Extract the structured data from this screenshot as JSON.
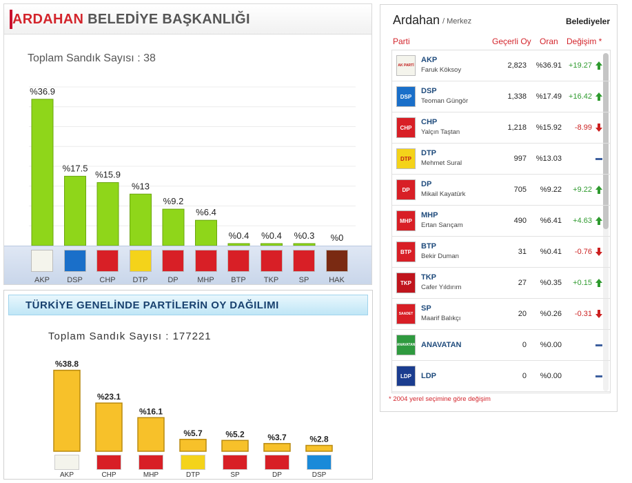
{
  "local": {
    "title_red": "ARDAHAN",
    "title_gray": "BELEDİYE BAŞKANLIĞI",
    "sandik_text": "Toplam Sandık Sayısı : 38"
  },
  "national": {
    "title": "TÜRKİYE GENELİNDE PARTİLERİN OY DAĞILIMI",
    "sandik_text": "Toplam Sandık Sayısı : 177221"
  },
  "chart_data": [
    {
      "type": "bar",
      "categories": [
        "AKP",
        "DSP",
        "CHP",
        "DTP",
        "DP",
        "MHP",
        "BTP",
        "TKP",
        "SP",
        "HAK"
      ],
      "values": [
        36.9,
        17.5,
        15.9,
        13,
        9.2,
        6.4,
        0.4,
        0.4,
        0.3,
        0
      ],
      "labels": [
        "%36.9",
        "%17.5",
        "%15.9",
        "%13",
        "%9.2",
        "%6.4",
        "%0.4",
        "%0.4",
        "%0.3",
        "%0"
      ],
      "logo_colors": [
        "#f4f4ec",
        "#1a6fc9",
        "#d81f26",
        "#f4d31a",
        "#d81f26",
        "#d81f26",
        "#d81f26",
        "#d81f26",
        "#d81f26",
        "#7a2a12"
      ],
      "title": "ARDAHAN BELEDİYE BAŞKANLIĞI",
      "ylim": [
        0,
        40
      ],
      "grid": true,
      "bar_color": "#8fd61a"
    },
    {
      "type": "bar",
      "categories": [
        "AKP",
        "CHP",
        "MHP",
        "DTP",
        "SP",
        "DP",
        "DSP"
      ],
      "values": [
        38.8,
        23.1,
        16.1,
        5.7,
        5.2,
        3.7,
        2.8
      ],
      "labels": [
        "%38.8",
        "%23.1",
        "%16.1",
        "%5.7",
        "%5.2",
        "%3.7",
        "%2.8"
      ],
      "logo_colors": [
        "#f4f4ec",
        "#d81f26",
        "#d81f26",
        "#f4d31a",
        "#d81f26",
        "#d81f26",
        "#1a8ad9"
      ],
      "title": "TÜRKİYE GENELİNDE PARTİLERİN OY DAĞILIMI",
      "ylim": [
        0,
        40
      ],
      "grid": false,
      "bar_color": "#f7c12a"
    },
    {
      "type": "table",
      "columns": [
        "Parti",
        "Geçerli Oy",
        "Oran",
        "Değişim *"
      ],
      "rows": [
        {
          "party": "AKP",
          "candidate": "Faruk Köksoy",
          "votes": "2,823",
          "pct": "%36.91",
          "change": "+19.27",
          "dir": "up",
          "color": "#f4f4ec",
          "abbr": "AK PARTİ"
        },
        {
          "party": "DSP",
          "candidate": "Teoman Güngör",
          "votes": "1,338",
          "pct": "%17.49",
          "change": "+16.42",
          "dir": "up",
          "color": "#1a6fc9",
          "abbr": "DSP"
        },
        {
          "party": "CHP",
          "candidate": "Yalçın Taştan",
          "votes": "1,218",
          "pct": "%15.92",
          "change": "-8.99",
          "dir": "down",
          "color": "#d81f26",
          "abbr": "CHP"
        },
        {
          "party": "DTP",
          "candidate": "Mehmet Sural",
          "votes": "997",
          "pct": "%13.03",
          "change": "",
          "dir": "none",
          "color": "#f4d31a",
          "abbr": "DTP"
        },
        {
          "party": "DP",
          "candidate": "Mikail Kayatürk",
          "votes": "705",
          "pct": "%9.22",
          "change": "+9.22",
          "dir": "up",
          "color": "#d81f26",
          "abbr": "DP"
        },
        {
          "party": "MHP",
          "candidate": "Ertan Sarıçam",
          "votes": "490",
          "pct": "%6.41",
          "change": "+4.63",
          "dir": "up",
          "color": "#d81f26",
          "abbr": "MHP"
        },
        {
          "party": "BTP",
          "candidate": "Bekir Duman",
          "votes": "31",
          "pct": "%0.41",
          "change": "-0.76",
          "dir": "down",
          "color": "#d81f26",
          "abbr": "BTP"
        },
        {
          "party": "TKP",
          "candidate": "Cafer Yıldırım",
          "votes": "27",
          "pct": "%0.35",
          "change": "+0.15",
          "dir": "up",
          "color": "#c0151d",
          "abbr": "TKP"
        },
        {
          "party": "SP",
          "candidate": "Maarif Balıkçı",
          "votes": "20",
          "pct": "%0.26",
          "change": "-0.31",
          "dir": "down",
          "color": "#d81f26",
          "abbr": "SAADET"
        },
        {
          "party": "ANAVATAN",
          "candidate": "",
          "votes": "0",
          "pct": "%0.00",
          "change": "",
          "dir": "none",
          "color": "#2f9a3f",
          "abbr": "ANAVATAN"
        },
        {
          "party": "LDP",
          "candidate": "",
          "votes": "0",
          "pct": "%0.00",
          "change": "",
          "dir": "none",
          "color": "#1b3d8f",
          "abbr": "LDP"
        }
      ]
    }
  ],
  "table": {
    "city": "Ardahan",
    "district": "/ Merkez",
    "type_label": "Belediyeler",
    "col_party": "Parti",
    "col_votes": "Geçerli Oy",
    "col_pct": "Oran",
    "col_change": "Değişim *",
    "footnote": "* 2004 yerel seçimine göre değişim"
  },
  "colors": {
    "brand_red": "#d3242b",
    "up_green": "#2e9a2e",
    "down_red": "#cc1f1f",
    "neutral_blue": "#3d5f9e"
  }
}
